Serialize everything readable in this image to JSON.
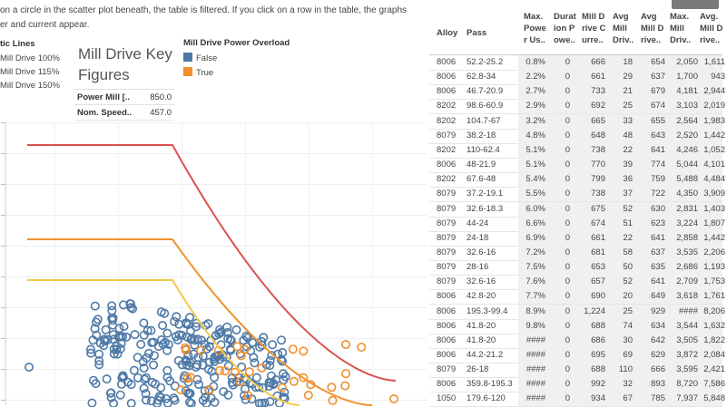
{
  "instructions": {
    "line1": "on a circle in the scatter plot beneath, the table is filtered. If you click on a row  in the table, the graphs",
    "line2": "er and current appear."
  },
  "static_lines_legend": {
    "title": "tic Lines",
    "items": [
      {
        "label": "Mill Drive 100%",
        "color": "#d9534f"
      },
      {
        "label": "Mill Drive 115%",
        "color": "#f0922e"
      },
      {
        "label": "Mill Drive 150%",
        "color": "#f2c94c"
      }
    ]
  },
  "key_figures": {
    "title": "Mill Drive Key Figures",
    "rows": [
      {
        "label": "Power Mill [..",
        "value": "850.0"
      },
      {
        "label": "Nom. Speed..",
        "value": "457.0"
      }
    ]
  },
  "overload_legend": {
    "title": "Mill Drive Power Overload",
    "items": [
      {
        "label": "False",
        "color": "#4e79a7"
      },
      {
        "label": "True",
        "color": "#f28e2b"
      }
    ]
  },
  "table": {
    "headers": [
      "Alloy",
      "Pass",
      "Max.\nPowe\nr Us..",
      "Durat\nion P\nowe..",
      "Mill D\nrive C\nurre..",
      "Avg\nMill\nDriv..",
      "Avg\nMill D\nrive..",
      "Max.\nMill\nDriv..",
      "Avg.\nMill D\nrive.."
    ],
    "rows": [
      [
        "8006",
        "52.2-25.2",
        "0.8%",
        "0",
        "666",
        "18",
        "654",
        "2,050",
        "1,611"
      ],
      [
        "8006",
        "62.8-34",
        "2.2%",
        "0",
        "661",
        "29",
        "637",
        "1,700",
        "943"
      ],
      [
        "8006",
        "46.7-20.9",
        "2.7%",
        "0",
        "733",
        "21",
        "679",
        "4,181",
        "2,944"
      ],
      [
        "8202",
        "98.6-60.9",
        "2.9%",
        "0",
        "692",
        "25",
        "674",
        "3,103",
        "2,019"
      ],
      [
        "8202",
        "104.7-67",
        "3.2%",
        "0",
        "665",
        "33",
        "655",
        "2,564",
        "1,983"
      ],
      [
        "8079",
        "38.2-18",
        "4.8%",
        "0",
        "648",
        "48",
        "643",
        "2,520",
        "1,442"
      ],
      [
        "8202",
        "110-62.4",
        "5.1%",
        "0",
        "738",
        "22",
        "641",
        "4,246",
        "1,052"
      ],
      [
        "8006",
        "48-21.9",
        "5.1%",
        "0",
        "770",
        "39",
        "774",
        "5,044",
        "4,101"
      ],
      [
        "8202",
        "67.6-48",
        "5.4%",
        "0",
        "799",
        "36",
        "759",
        "5,488",
        "4,484"
      ],
      [
        "8079",
        "37.2-19.1",
        "5.5%",
        "0",
        "738",
        "37",
        "722",
        "4,350",
        "3,909"
      ],
      [
        "8079",
        "32.6-18.3",
        "6.0%",
        "0",
        "675",
        "52",
        "630",
        "2,831",
        "1,403"
      ],
      [
        "8079",
        "44-24",
        "6.6%",
        "0",
        "674",
        "51",
        "623",
        "3,224",
        "1,807"
      ],
      [
        "8079",
        "24-18",
        "6.9%",
        "0",
        "661",
        "22",
        "641",
        "2,858",
        "1,442"
      ],
      [
        "8079",
        "32.6-16",
        "7.2%",
        "0",
        "681",
        "58",
        "637",
        "3,535",
        "2,206"
      ],
      [
        "8079",
        "28-16",
        "7.5%",
        "0",
        "653",
        "50",
        "635",
        "2,686",
        "1,193"
      ],
      [
        "8079",
        "32.6-16",
        "7.6%",
        "0",
        "657",
        "52",
        "641",
        "2,709",
        "1,753"
      ],
      [
        "8006",
        "42.8-20",
        "7.7%",
        "0",
        "690",
        "20",
        "649",
        "3,618",
        "1,761"
      ],
      [
        "8006",
        "195.3-99.4",
        "8.9%",
        "0",
        "1,224",
        "25",
        "929",
        "####",
        "8,206"
      ],
      [
        "8006",
        "41.8-20",
        "9.8%",
        "0",
        "688",
        "74",
        "634",
        "3,544",
        "1,632"
      ],
      [
        "8006",
        "41.8-20",
        "####",
        "0",
        "686",
        "30",
        "642",
        "3,505",
        "1,822"
      ],
      [
        "8006",
        "44.2-21.2",
        "####",
        "0",
        "695",
        "69",
        "629",
        "3,872",
        "2,084"
      ],
      [
        "8079",
        "26-18",
        "####",
        "0",
        "688",
        "110",
        "666",
        "3,595",
        "2,421"
      ],
      [
        "8006",
        "359.8-195.3",
        "####",
        "0",
        "992",
        "32",
        "893",
        "8,720",
        "7,586"
      ],
      [
        "1050",
        "179.6-120",
        "####",
        "0",
        "934",
        "67",
        "785",
        "7,937",
        "5,848"
      ]
    ]
  },
  "scatter": {
    "colors": {
      "false": "#4e79a7",
      "true": "#f28e2b",
      "line100": "#d9534f",
      "line115": "#f0922e",
      "line150": "#f2c94c"
    }
  }
}
